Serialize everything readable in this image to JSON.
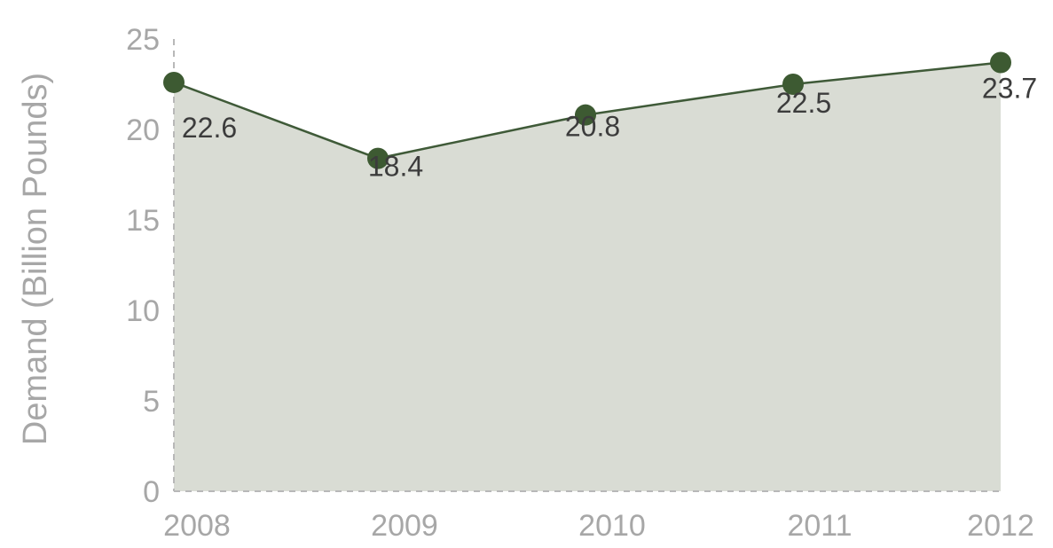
{
  "chart_data": {
    "type": "area",
    "categories": [
      "2008",
      "2009",
      "2010",
      "2011",
      "2012"
    ],
    "series": [
      {
        "values": [
          22.6,
          18.4,
          20.8,
          22.5,
          23.7
        ],
        "data_labels": [
          "22.6",
          "18.4",
          "20.8",
          "22.5",
          "23.7"
        ]
      }
    ],
    "title": "",
    "xlabel": "",
    "ylabel": "Demand (Billion Pounds)",
    "ylim": [
      0,
      25
    ],
    "yticks": [
      0,
      5,
      10,
      15,
      20,
      25
    ],
    "ytick_labels": [
      "0",
      "5",
      "10",
      "15",
      "20",
      "25"
    ],
    "grid": false,
    "colors": {
      "area_fill": "#d9dcd4",
      "line": "#3f5a38",
      "marker": "#3d5a32",
      "axis": "#b8b8b8",
      "tick_text": "#a7a7a7",
      "label_text": "#3c3c3c"
    }
  }
}
